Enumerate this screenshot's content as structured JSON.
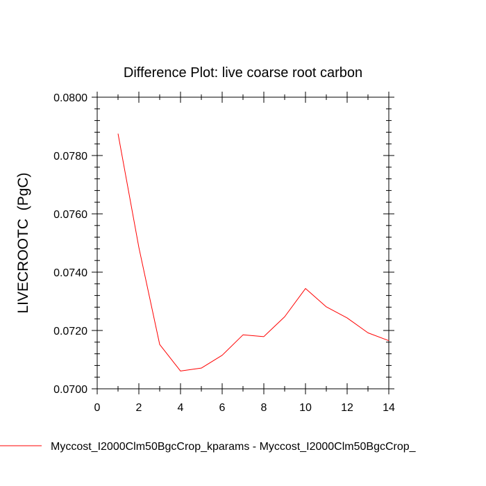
{
  "chart_data": {
    "type": "line",
    "title": "Difference Plot: live coarse root carbon",
    "xlabel": "",
    "ylabel": "LIVECROOTC  (PgC)",
    "xlim": [
      0,
      14
    ],
    "ylim": [
      0.07,
      0.08
    ],
    "x_ticks": [
      0,
      2,
      4,
      6,
      8,
      10,
      12,
      14
    ],
    "x_tick_labels": [
      "0",
      "2",
      "4",
      "6",
      "8",
      "10",
      "12",
      "14"
    ],
    "y_ticks": [
      0.07,
      0.072,
      0.074,
      0.076,
      0.078,
      0.08
    ],
    "y_tick_labels": [
      "0.0700",
      "0.0720",
      "0.0740",
      "0.0760",
      "0.0780",
      "0.0800"
    ],
    "grid": false,
    "legend_position": "bottom",
    "series": [
      {
        "name": "Myccost_I2000Clm50BgcCrop_kparams - Myccost_I2000Clm50BgcCrop_",
        "color": "#ff0000",
        "x": [
          1,
          2,
          3,
          4,
          5,
          6,
          7,
          8,
          9,
          10,
          11,
          12,
          13,
          14
        ],
        "values": [
          0.07875,
          0.07485,
          0.07152,
          0.07061,
          0.07071,
          0.07115,
          0.07185,
          0.07179,
          0.07247,
          0.07344,
          0.07281,
          0.07243,
          0.07192,
          0.07165
        ]
      }
    ]
  }
}
